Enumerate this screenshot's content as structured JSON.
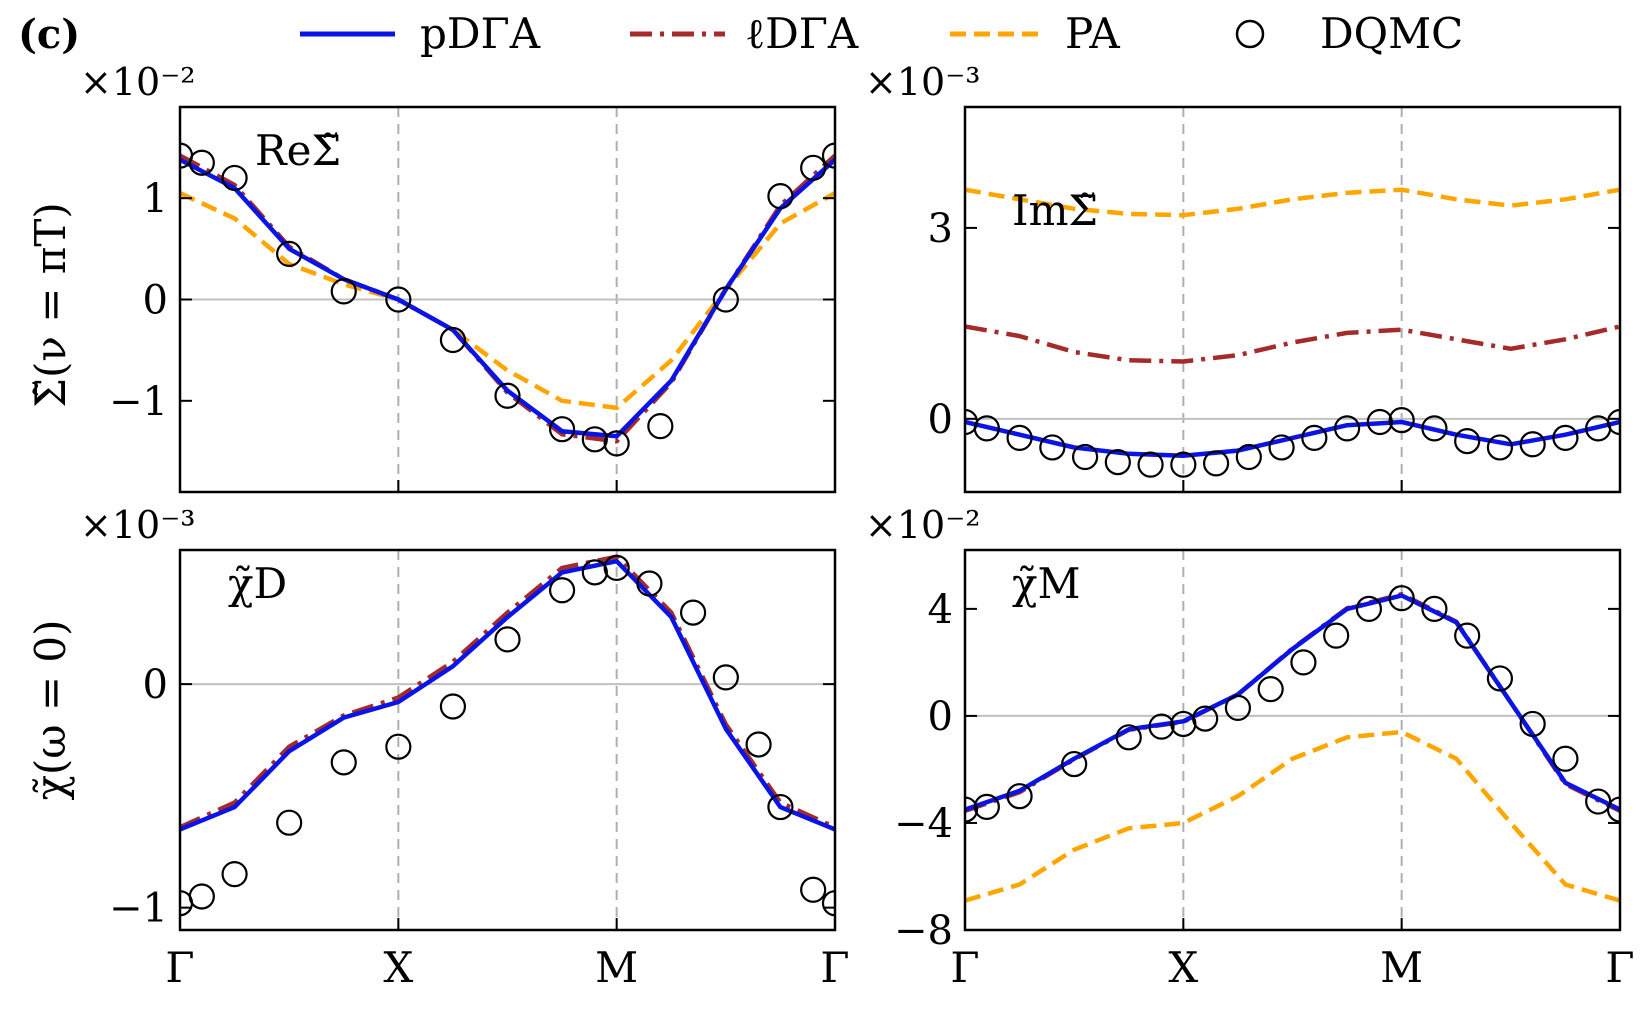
{
  "panel_label": "(c)",
  "x_ticks": [
    "Γ",
    "X",
    "M",
    "Γ"
  ],
  "row_labels": {
    "top": "Σ̃(ν = πT)",
    "bottom": "χ̃(ω = 0)"
  },
  "legend": [
    {
      "name": "pDΓA",
      "color": "#0a14e6",
      "style": "solid"
    },
    {
      "name": "ℓDΓA",
      "color": "#a52a2a",
      "style": "dashdot"
    },
    {
      "name": "PA",
      "color": "#ffa500",
      "style": "dashed"
    },
    {
      "name": "DQMC",
      "color": "#000000",
      "style": "circle"
    }
  ],
  "chart_data": [
    {
      "id": "re-sigma",
      "type": "line",
      "annotation": "ReΣ̃",
      "multiplier": "×10⁻²",
      "ylim": [
        -1.9,
        1.9
      ],
      "yticks": [
        -1,
        0,
        1
      ],
      "ytick_labels": [
        "−1",
        "0",
        "1"
      ],
      "x_range": [
        0,
        3
      ],
      "grid": "vertical dashed at X and M, horizontal at 0",
      "series": [
        {
          "name": "pDΓA",
          "x": [
            0,
            0.25,
            0.5,
            0.75,
            1,
            1.25,
            1.5,
            1.75,
            2,
            2.25,
            2.5,
            2.75,
            3
          ],
          "y": [
            1.38,
            1.1,
            0.5,
            0.2,
            0.0,
            -0.3,
            -0.9,
            -1.3,
            -1.35,
            -0.8,
            0.1,
            0.9,
            1.38
          ]
        },
        {
          "name": "ℓDΓA",
          "x": [
            0,
            0.25,
            0.5,
            0.75,
            1,
            1.25,
            1.5,
            1.75,
            2,
            2.25,
            2.5,
            2.75,
            3
          ],
          "y": [
            1.42,
            1.13,
            0.52,
            0.2,
            0.0,
            -0.3,
            -0.92,
            -1.33,
            -1.4,
            -0.82,
            0.1,
            0.93,
            1.42
          ]
        },
        {
          "name": "PA",
          "x": [
            0,
            0.25,
            0.5,
            0.75,
            1,
            1.25,
            1.5,
            1.75,
            2,
            2.25,
            2.5,
            2.75,
            3
          ],
          "y": [
            1.05,
            0.8,
            0.35,
            0.15,
            0.0,
            -0.3,
            -0.7,
            -1.0,
            -1.07,
            -0.6,
            0.1,
            0.75,
            1.05
          ]
        },
        {
          "name": "DQMC",
          "x": [
            0,
            0.1,
            0.25,
            0.5,
            0.75,
            1,
            1.25,
            1.5,
            1.75,
            1.9,
            2,
            2.2,
            2.5,
            2.75,
            2.9,
            3
          ],
          "y": [
            1.42,
            1.35,
            1.2,
            0.45,
            0.08,
            0.0,
            -0.4,
            -0.95,
            -1.28,
            -1.38,
            -1.42,
            -1.25,
            0.0,
            1.02,
            1.3,
            1.42
          ]
        }
      ]
    },
    {
      "id": "im-sigma",
      "type": "line",
      "annotation": "ImΣ̃",
      "multiplier": "×10⁻³",
      "ylim": [
        -1.15,
        4.9
      ],
      "yticks": [
        0,
        3
      ],
      "ytick_labels": [
        "0",
        "3"
      ],
      "x_range": [
        0,
        3
      ],
      "grid": "vertical dashed at X and M, horizontal at 0",
      "series": [
        {
          "name": "pDΓA",
          "x": [
            0,
            0.25,
            0.5,
            0.75,
            1,
            1.25,
            1.5,
            1.75,
            2,
            2.25,
            2.5,
            2.75,
            3
          ],
          "y": [
            -0.05,
            -0.25,
            -0.45,
            -0.55,
            -0.58,
            -0.5,
            -0.3,
            -0.1,
            -0.05,
            -0.25,
            -0.4,
            -0.25,
            -0.05
          ]
        },
        {
          "name": "ℓDΓA",
          "x": [
            0,
            0.25,
            0.5,
            0.75,
            1,
            1.25,
            1.5,
            1.75,
            2,
            2.25,
            2.5,
            2.75,
            3
          ],
          "y": [
            1.45,
            1.3,
            1.05,
            0.92,
            0.9,
            1.0,
            1.2,
            1.35,
            1.4,
            1.25,
            1.1,
            1.25,
            1.45
          ]
        },
        {
          "name": "PA",
          "x": [
            0,
            0.25,
            0.5,
            0.75,
            1,
            1.25,
            1.5,
            1.75,
            2,
            2.25,
            2.5,
            2.75,
            3
          ],
          "y": [
            3.6,
            3.45,
            3.3,
            3.22,
            3.2,
            3.3,
            3.45,
            3.55,
            3.6,
            3.45,
            3.35,
            3.45,
            3.6
          ]
        },
        {
          "name": "DQMC",
          "x": [
            0,
            0.1,
            0.25,
            0.4,
            0.55,
            0.7,
            0.85,
            1,
            1.15,
            1.3,
            1.45,
            1.6,
            1.75,
            1.9,
            2,
            2.15,
            2.3,
            2.45,
            2.6,
            2.75,
            2.9,
            3
          ],
          "y": [
            -0.05,
            -0.15,
            -0.3,
            -0.45,
            -0.6,
            -0.68,
            -0.72,
            -0.72,
            -0.7,
            -0.6,
            -0.45,
            -0.3,
            -0.15,
            -0.05,
            -0.02,
            -0.15,
            -0.35,
            -0.45,
            -0.4,
            -0.3,
            -0.15,
            -0.05
          ]
        }
      ]
    },
    {
      "id": "chi-d",
      "type": "line",
      "annotation": "χ̃D",
      "multiplier": "×10⁻³",
      "ylim": [
        -1.1,
        0.6
      ],
      "yticks": [
        -1,
        0
      ],
      "ytick_labels": [
        "−1",
        "0"
      ],
      "x_range": [
        0,
        3
      ],
      "grid": "vertical dashed at X and M, horizontal at 0",
      "series": [
        {
          "name": "pDΓA",
          "x": [
            0,
            0.25,
            0.5,
            0.75,
            1,
            1.25,
            1.5,
            1.75,
            2,
            2.25,
            2.5,
            2.75,
            3
          ],
          "y": [
            -0.65,
            -0.55,
            -0.3,
            -0.15,
            -0.08,
            0.08,
            0.3,
            0.5,
            0.55,
            0.3,
            -0.2,
            -0.55,
            -0.65
          ]
        },
        {
          "name": "ℓDΓA",
          "x": [
            0,
            0.25,
            0.5,
            0.75,
            1,
            1.25,
            1.5,
            1.75,
            2,
            2.25,
            2.5,
            2.75,
            3
          ],
          "y": [
            -0.64,
            -0.53,
            -0.28,
            -0.14,
            -0.06,
            0.1,
            0.32,
            0.52,
            0.57,
            0.32,
            -0.18,
            -0.53,
            -0.64
          ]
        },
        {
          "name": "DQMC",
          "x": [
            0,
            0.1,
            0.25,
            0.5,
            0.75,
            1,
            1.25,
            1.5,
            1.75,
            1.9,
            2,
            2.15,
            2.35,
            2.5,
            2.65,
            2.75,
            2.9,
            3
          ],
          "y": [
            -0.98,
            -0.95,
            -0.85,
            -0.62,
            -0.35,
            -0.28,
            -0.1,
            0.2,
            0.42,
            0.5,
            0.52,
            0.45,
            0.32,
            0.03,
            -0.27,
            -0.55,
            -0.92,
            -0.98
          ]
        }
      ]
    },
    {
      "id": "chi-m",
      "type": "line",
      "annotation": "χ̃M",
      "multiplier": "×10⁻²",
      "ylim": [
        -8,
        6.2
      ],
      "yticks": [
        -8,
        -4,
        0,
        4
      ],
      "ytick_labels": [
        "−8",
        "−4",
        "0",
        "4"
      ],
      "x_range": [
        0,
        3
      ],
      "grid": "vertical dashed at X and M, horizontal at 0",
      "series": [
        {
          "name": "pDΓA",
          "x": [
            0,
            0.25,
            0.5,
            0.75,
            1,
            1.25,
            1.5,
            1.75,
            2,
            2.25,
            2.5,
            2.75,
            3
          ],
          "y": [
            -3.5,
            -2.8,
            -1.6,
            -0.5,
            -0.2,
            0.8,
            2.5,
            4.0,
            4.5,
            3.5,
            0.5,
            -2.5,
            -3.5
          ]
        },
        {
          "name": "ℓDΓA",
          "x": [
            0,
            0.25,
            0.5,
            0.75,
            1,
            1.25,
            1.5,
            1.75,
            2,
            2.25,
            2.5,
            2.75,
            3
          ],
          "y": [
            -3.55,
            -2.85,
            -1.62,
            -0.52,
            -0.22,
            0.8,
            2.52,
            4.02,
            4.55,
            3.52,
            0.5,
            -2.55,
            -3.55
          ]
        },
        {
          "name": "PA",
          "x": [
            0,
            0.25,
            0.5,
            0.75,
            1,
            1.25,
            1.5,
            1.75,
            2,
            2.25,
            2.5,
            2.75,
            3
          ],
          "y": [
            -6.9,
            -6.3,
            -5.0,
            -4.2,
            -4.0,
            -3.0,
            -1.6,
            -0.8,
            -0.6,
            -1.6,
            -4.0,
            -6.3,
            -6.9
          ]
        },
        {
          "name": "DQMC",
          "x": [
            0,
            0.1,
            0.25,
            0.5,
            0.75,
            0.9,
            1,
            1.1,
            1.25,
            1.4,
            1.55,
            1.7,
            1.85,
            2,
            2.15,
            2.3,
            2.45,
            2.6,
            2.75,
            2.9,
            3
          ],
          "y": [
            -3.5,
            -3.4,
            -3.0,
            -1.8,
            -0.8,
            -0.4,
            -0.3,
            -0.1,
            0.3,
            1.0,
            2.0,
            3.0,
            4.0,
            4.4,
            4.0,
            3.0,
            1.4,
            -0.3,
            -1.6,
            -3.2,
            -3.5
          ]
        }
      ]
    }
  ]
}
